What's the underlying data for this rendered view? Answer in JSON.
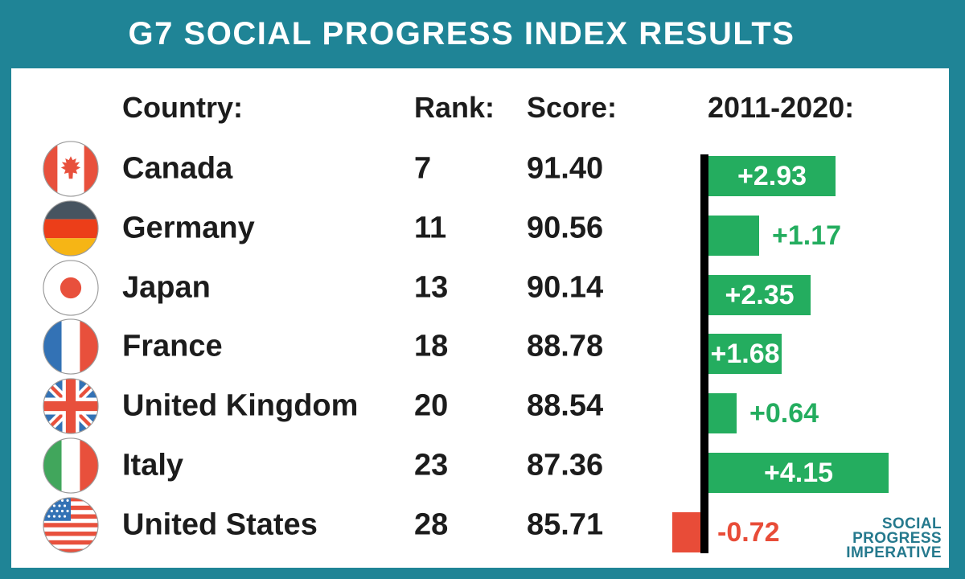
{
  "header": {
    "title": "G7 SOCIAL PROGRESS INDEX RESULTS"
  },
  "columns": {
    "country": "Country:",
    "rank": "Rank:",
    "score": "Score:",
    "period": "2011-2020:"
  },
  "rows": [
    {
      "country": "Canada",
      "rank": "7",
      "score": "91.40",
      "change": "+2.93"
    },
    {
      "country": "Germany",
      "rank": "11",
      "score": "90.56",
      "change": "+1.17"
    },
    {
      "country": "Japan",
      "rank": "13",
      "score": "90.14",
      "change": "+2.35"
    },
    {
      "country": "France",
      "rank": "18",
      "score": "88.78",
      "change": "+1.68"
    },
    {
      "country": "United Kingdom",
      "rank": "20",
      "score": "88.54",
      "change": "+0.64"
    },
    {
      "country": "Italy",
      "rank": "23",
      "score": "87.36",
      "change": "+4.15"
    },
    {
      "country": "United States",
      "rank": "28",
      "score": "85.71",
      "change": "-0.72"
    }
  ],
  "chart_data": {
    "type": "bar",
    "orientation": "horizontal",
    "title": "2011-2020:",
    "categories": [
      "Canada",
      "Germany",
      "Japan",
      "France",
      "United Kingdom",
      "Italy",
      "United States"
    ],
    "values": [
      2.93,
      1.17,
      2.35,
      1.68,
      0.64,
      4.15,
      -0.72
    ],
    "labels": [
      "+2.93",
      "+1.17",
      "+2.35",
      "+1.68",
      "+0.64",
      "+4.15",
      "-0.72"
    ],
    "ranks": [
      7,
      11,
      13,
      18,
      20,
      23,
      28
    ],
    "scores": [
      91.4,
      90.56,
      90.14,
      88.78,
      88.54,
      87.36,
      85.71
    ],
    "baseline": 0,
    "xlim": [
      -1,
      4.5
    ],
    "grid": false,
    "legend": false,
    "positive_color": "#24ad5f",
    "negative_color": "#e84c38"
  },
  "logo": {
    "line1": "SOCIAL",
    "line2": "PROGRESS",
    "line3": "IMPERATIVE"
  },
  "colors": {
    "frame_teal": "#1f8496",
    "logo_teal": "#25798d",
    "bar_green": "#24ad5f",
    "bar_red": "#e84c38",
    "ink": "#1c1c1c",
    "axis_black": "#000000"
  }
}
